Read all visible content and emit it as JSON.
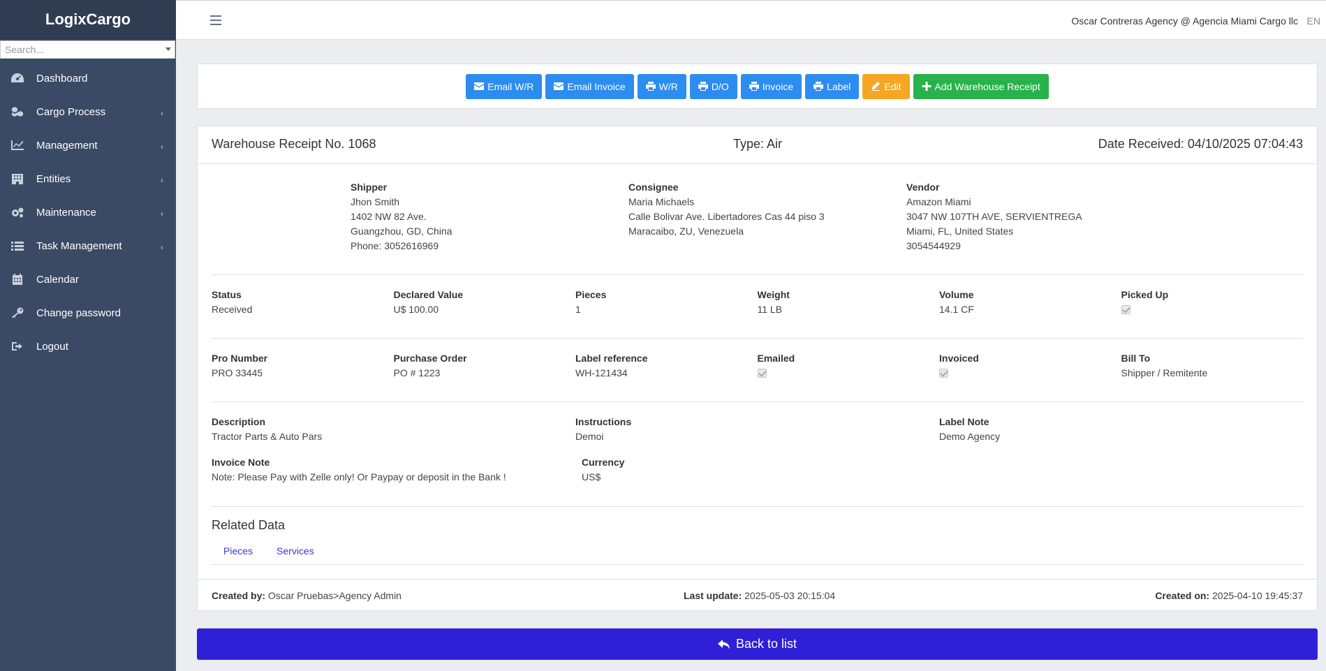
{
  "sidebar": {
    "brand": "LogixCargo",
    "search_placeholder": "Search...",
    "items": [
      {
        "label": "Dashboard",
        "icon": "dashboard-icon",
        "has_children": false
      },
      {
        "label": "Cargo Process",
        "icon": "cubes-icon",
        "has_children": true
      },
      {
        "label": "Management",
        "icon": "line-chart-icon",
        "has_children": true
      },
      {
        "label": "Entities",
        "icon": "building-icon",
        "has_children": true
      },
      {
        "label": "Maintenance",
        "icon": "gears-icon",
        "has_children": true
      },
      {
        "label": "Task Management",
        "icon": "list-icon",
        "has_children": true
      },
      {
        "label": "Calendar",
        "icon": "calendar-icon",
        "has_children": false
      },
      {
        "label": "Change password",
        "icon": "key-icon",
        "has_children": false
      },
      {
        "label": "Logout",
        "icon": "sign-out-icon",
        "has_children": false
      }
    ]
  },
  "topbar": {
    "user": "Oscar Contreras Agency @ Agencia Miami Cargo llc",
    "lang": "EN"
  },
  "actions": {
    "email_wr": "Email W/R",
    "email_invoice": "Email Invoice",
    "wr": "W/R",
    "do": "D/O",
    "invoice": "Invoice",
    "label": "Label",
    "edit": "Edit",
    "add_wr": "Add Warehouse Receipt"
  },
  "receipt": {
    "title": "Warehouse Receipt No. 1068",
    "type": "Type: Air",
    "date_received": "Date Received: 04/10/2025 07:04:43"
  },
  "shipper": {
    "label": "Shipper",
    "name": "Jhon Smith",
    "address": "1402 NW 82 Ave.",
    "city": "Guangzhou, GD, China",
    "phone": "Phone: 3052616969"
  },
  "consignee": {
    "label": "Consignee",
    "name": "Maria Michaels",
    "address": "Calle Bolivar Ave. Libertadores Cas 44 piso 3",
    "city": "Maracaibo, ZU, Venezuela"
  },
  "vendor": {
    "label": "Vendor",
    "name": "Amazon Miami",
    "address": "3047 NW 107TH AVE, SERVIENTREGA",
    "city": "Miami, FL, United States",
    "phone": "3054544929"
  },
  "row1": {
    "status_label": "Status",
    "status": "Received",
    "declared_label": "Declared Value",
    "declared": "U$ 100.00",
    "pieces_label": "Pieces",
    "pieces": "1",
    "weight_label": "Weight",
    "weight": "11 LB",
    "volume_label": "Volume",
    "volume": "14.1 CF",
    "picked_label": "Picked Up"
  },
  "row2": {
    "pro_label": "Pro Number",
    "pro": "PRO 33445",
    "po_label": "Purchase Order",
    "po": "PO # 1223",
    "labelref_label": "Label reference",
    "labelref": "WH-121434",
    "emailed_label": "Emailed",
    "invoiced_label": "Invoiced",
    "billto_label": "Bill To",
    "billto": "Shipper / Remitente"
  },
  "desc": {
    "description_label": "Description",
    "description": "Tractor Parts & Auto Pars",
    "instructions_label": "Instructions",
    "instructions": "Demoi",
    "labelnote_label": "Label Note",
    "labelnote": "Demo Agency",
    "invoicenote_label": "Invoice Note",
    "invoicenote": "Note: Please Pay with Zelle only! Or Paypay or deposit in the Bank !",
    "currency_label": "Currency",
    "currency": "US$"
  },
  "related": {
    "title": "Related Data",
    "tabs": [
      "Pieces",
      "Services"
    ]
  },
  "footer": {
    "created_by_label": "Created by:",
    "created_by": "Oscar Pruebas>Agency Admin",
    "last_update_label": "Last update:",
    "last_update": "2025-05-03 20:15:04",
    "created_on_label": "Created on:",
    "created_on": "2025-04-10 19:45:37"
  },
  "back": "Back to list",
  "colors": {
    "primary": "#2d8cf0",
    "edit": "#f5a623",
    "add": "#28b24b",
    "back": "#2f1fd6",
    "sidebar": "#3b4a64"
  }
}
